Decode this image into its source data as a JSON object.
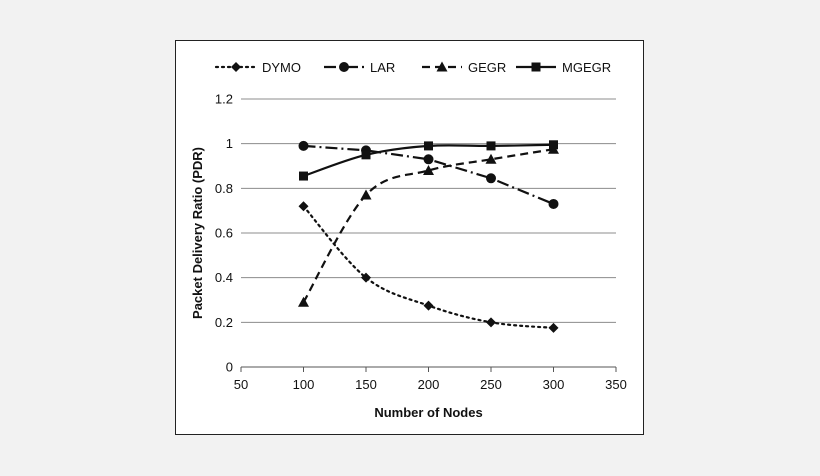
{
  "chart_data": {
    "type": "line",
    "xlabel": "Number of Nodes",
    "ylabel": "Packet Delivery Ratio (PDR)",
    "xlim": [
      50,
      350
    ],
    "ylim": [
      0,
      1.2
    ],
    "x_ticks": [
      "50",
      "100",
      "150",
      "200",
      "250",
      "300",
      "350"
    ],
    "y_ticks": [
      "0",
      "0.2",
      "0.4",
      "0.6",
      "0.8",
      "1",
      "1.2"
    ],
    "grid": "horizontal",
    "legend_position": "top",
    "x": [
      100,
      150,
      200,
      250,
      300
    ],
    "series": [
      {
        "name": "DYMO",
        "values": [
          0.72,
          0.4,
          0.275,
          0.2,
          0.175
        ],
        "marker": "diamond",
        "dash": "dotted",
        "smooth": true
      },
      {
        "name": "LAR",
        "values": [
          0.99,
          0.97,
          0.93,
          0.845,
          0.73
        ],
        "marker": "circle",
        "dash": "dashdot",
        "smooth": false
      },
      {
        "name": "GEGR",
        "values": [
          0.29,
          0.77,
          0.88,
          0.93,
          0.975
        ],
        "marker": "triangle",
        "dash": "dashed",
        "smooth": true
      },
      {
        "name": "MGEGR",
        "values": [
          0.855,
          0.95,
          0.99,
          0.99,
          0.995
        ],
        "marker": "square",
        "dash": "solid",
        "smooth": true
      }
    ]
  }
}
